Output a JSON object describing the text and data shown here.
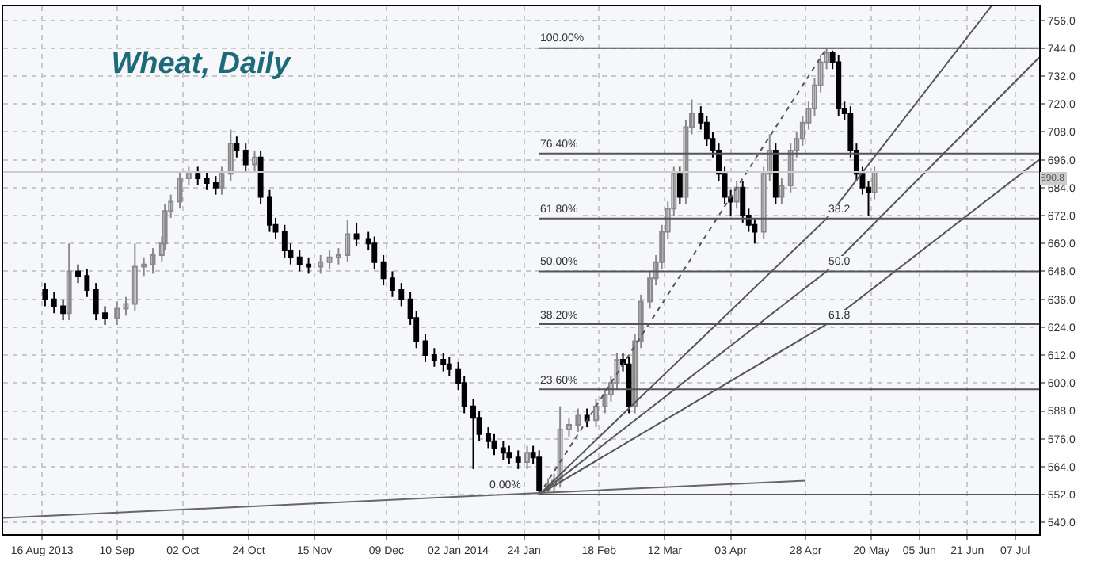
{
  "chart_data": {
    "type": "candlestick",
    "title": "Wheat, Daily",
    "x": [
      "2013-08-17",
      "2013-08-20",
      "2013-08-23",
      "2013-08-25",
      "2013-08-28",
      "2013-08-31",
      "2013-09-03",
      "2013-09-06",
      "2013-09-10",
      "2013-09-13",
      "2013-09-16",
      "2013-09-19",
      "2013-09-22",
      "2013-09-25",
      "2013-09-26",
      "2013-09-28",
      "2013-10-01",
      "2013-10-04",
      "2013-10-07",
      "2013-10-10",
      "2013-10-13",
      "2013-10-15",
      "2013-10-18",
      "2013-10-20",
      "2013-10-23",
      "2013-10-26",
      "2013-10-28",
      "2013-10-31",
      "2013-11-02",
      "2013-11-05",
      "2013-11-07",
      "2013-11-10",
      "2013-11-13",
      "2013-11-17",
      "2013-11-20",
      "2013-11-23",
      "2013-11-26",
      "2013-11-29",
      "2013-12-03",
      "2013-12-05",
      "2013-12-08",
      "2013-12-11",
      "2013-12-14",
      "2013-12-17",
      "2013-12-19",
      "2013-12-22",
      "2013-12-25",
      "2013-12-28",
      "2013-12-30",
      "2014-01-02",
      "2014-01-04",
      "2014-01-07",
      "2014-01-09",
      "2014-01-12",
      "2014-01-14",
      "2014-01-17",
      "2014-01-19",
      "2014-01-22",
      "2014-01-25",
      "2014-01-27",
      "2014-01-29",
      "2014-02-01",
      "2014-02-03",
      "2014-02-05",
      "2014-02-08",
      "2014-02-11",
      "2014-02-14",
      "2014-02-17",
      "2014-02-20",
      "2014-02-22",
      "2014-02-24",
      "2014-02-26",
      "2014-02-28",
      "2014-03-02",
      "2014-03-04",
      "2014-03-07",
      "2014-03-09",
      "2014-03-11",
      "2014-03-13",
      "2014-03-15",
      "2014-03-17",
      "2014-03-19",
      "2014-03-21",
      "2014-03-24",
      "2014-03-26",
      "2014-03-28",
      "2014-03-30",
      "2014-04-01",
      "2014-04-03",
      "2014-04-05",
      "2014-04-07",
      "2014-04-09",
      "2014-04-11",
      "2014-04-14",
      "2014-04-16",
      "2014-04-18",
      "2014-04-20",
      "2014-04-23",
      "2014-04-25",
      "2014-04-27",
      "2014-04-29",
      "2014-05-01",
      "2014-05-03",
      "2014-05-05",
      "2014-05-07",
      "2014-05-09",
      "2014-05-11",
      "2014-05-13",
      "2014-05-15",
      "2014-05-17",
      "2014-05-19",
      "2014-05-21"
    ],
    "ohlc": [
      [
        640,
        643,
        633,
        636
      ],
      [
        636,
        639,
        630,
        633
      ],
      [
        633,
        636,
        627,
        630
      ],
      [
        630,
        660,
        627,
        648
      ],
      [
        648,
        651,
        643,
        646
      ],
      [
        646,
        649,
        637,
        640
      ],
      [
        640,
        643,
        627,
        630
      ],
      [
        630,
        633,
        625,
        628
      ],
      [
        628,
        635,
        625,
        632
      ],
      [
        632,
        637,
        629,
        634
      ],
      [
        634,
        660,
        631,
        650
      ],
      [
        650,
        654,
        646,
        651
      ],
      [
        651,
        658,
        647,
        655
      ],
      [
        655,
        663,
        652,
        660
      ],
      [
        660,
        677,
        657,
        674
      ],
      [
        674,
        681,
        671,
        678
      ],
      [
        678,
        691,
        675,
        688
      ],
      [
        688,
        693,
        685,
        690
      ],
      [
        690,
        693,
        685,
        688
      ],
      [
        688,
        691,
        683,
        686
      ],
      [
        686,
        689,
        681,
        684
      ],
      [
        684,
        693,
        681,
        690
      ],
      [
        690,
        709,
        687,
        703
      ],
      [
        703,
        706,
        697,
        700
      ],
      [
        700,
        703,
        691,
        694
      ],
      [
        694,
        700,
        691,
        697
      ],
      [
        697,
        700,
        677,
        680
      ],
      [
        680,
        683,
        665,
        668
      ],
      [
        668,
        671,
        662,
        665
      ],
      [
        665,
        668,
        654,
        657
      ],
      [
        657,
        660,
        651,
        654
      ],
      [
        654,
        657,
        648,
        651
      ],
      [
        651,
        654,
        647,
        650
      ],
      [
        650,
        655,
        647,
        652
      ],
      [
        652,
        657,
        649,
        654
      ],
      [
        654,
        658,
        651,
        655
      ],
      [
        655,
        670,
        652,
        664
      ],
      [
        664,
        669,
        659,
        662
      ],
      [
        662,
        665,
        657,
        660
      ],
      [
        660,
        663,
        649,
        652
      ],
      [
        652,
        655,
        642,
        645
      ],
      [
        645,
        648,
        637,
        640
      ],
      [
        640,
        643,
        633,
        636
      ],
      [
        636,
        639,
        625,
        628
      ],
      [
        628,
        631,
        615,
        618
      ],
      [
        618,
        621,
        609,
        612
      ],
      [
        612,
        615,
        607,
        610
      ],
      [
        610,
        613,
        605,
        608
      ],
      [
        608,
        611,
        603,
        606
      ],
      [
        606,
        609,
        597,
        600
      ],
      [
        600,
        603,
        587,
        590
      ],
      [
        590,
        593,
        563,
        585
      ],
      [
        585,
        588,
        575,
        578
      ],
      [
        578,
        581,
        572,
        575
      ],
      [
        575,
        578,
        569,
        572
      ],
      [
        572,
        575,
        567,
        570
      ],
      [
        570,
        573,
        565,
        568
      ],
      [
        568,
        571,
        563,
        566
      ],
      [
        566,
        573,
        563,
        570
      ],
      [
        570,
        573,
        565,
        568
      ],
      [
        568,
        571,
        552,
        554
      ],
      [
        554,
        559,
        553,
        556
      ],
      [
        556,
        561,
        553,
        558
      ],
      [
        558,
        590,
        555,
        580
      ],
      [
        580,
        585,
        577,
        582
      ],
      [
        582,
        589,
        579,
        586
      ],
      [
        586,
        589,
        581,
        584
      ],
      [
        584,
        593,
        581,
        590
      ],
      [
        590,
        598,
        587,
        595
      ],
      [
        595,
        603,
        592,
        600
      ],
      [
        600,
        613,
        597,
        610
      ],
      [
        610,
        613,
        605,
        608
      ],
      [
        608,
        611,
        587,
        590
      ],
      [
        590,
        621,
        587,
        618
      ],
      [
        618,
        638,
        615,
        635
      ],
      [
        635,
        648,
        632,
        645
      ],
      [
        645,
        655,
        642,
        652
      ],
      [
        652,
        668,
        649,
        665
      ],
      [
        665,
        678,
        662,
        675
      ],
      [
        675,
        693,
        672,
        690
      ],
      [
        690,
        693,
        677,
        680
      ],
      [
        680,
        713,
        677,
        710
      ],
      [
        710,
        722,
        707,
        716
      ],
      [
        716,
        719,
        709,
        712
      ],
      [
        712,
        715,
        702,
        705
      ],
      [
        705,
        708,
        697,
        700
      ],
      [
        700,
        703,
        687,
        690
      ],
      [
        690,
        693,
        677,
        680
      ],
      [
        680,
        683,
        672,
        678
      ],
      [
        678,
        687,
        675,
        684
      ],
      [
        684,
        687,
        669,
        672
      ],
      [
        672,
        675,
        665,
        668
      ],
      [
        668,
        671,
        660,
        665
      ],
      [
        665,
        693,
        662,
        690
      ],
      [
        690,
        707,
        687,
        700
      ],
      [
        700,
        703,
        677,
        680
      ],
      [
        680,
        688,
        677,
        685
      ],
      [
        685,
        703,
        682,
        700
      ],
      [
        700,
        708,
        697,
        705
      ],
      [
        705,
        715,
        702,
        712
      ],
      [
        712,
        721,
        709,
        718
      ],
      [
        718,
        731,
        715,
        728
      ],
      [
        728,
        741,
        725,
        738
      ],
      [
        738,
        744,
        735,
        742
      ],
      [
        742,
        743,
        735,
        738
      ],
      [
        738,
        741,
        715,
        718
      ],
      [
        718,
        721,
        713,
        716
      ],
      [
        716,
        719,
        697,
        700
      ],
      [
        700,
        703,
        687,
        690
      ],
      [
        690,
        693,
        681,
        684
      ],
      [
        684,
        687,
        672,
        682
      ],
      [
        682,
        693,
        679,
        690.8
      ]
    ],
    "series": [
      {
        "type": "line",
        "x": [
          "2014-01-29",
          "2014-05-05"
        ],
        "values": [
          552,
          744
        ],
        "color": "#555555",
        "line_style": "dotted"
      },
      {
        "type": "line",
        "x": [
          "2014-01-29",
          "2014-05-05",
          "2014-06-29"
        ],
        "values": [
          552,
          670.7,
          762
        ],
        "color": "#555555",
        "line_style": "solid"
      },
      {
        "type": "line",
        "x": [
          "2014-01-29",
          "2014-05-05",
          "2014-07-15"
        ],
        "values": [
          552,
          648,
          740
        ],
        "color": "#555555",
        "line_style": "solid"
      },
      {
        "type": "line",
        "x": [
          "2014-01-29",
          "2014-05-05",
          "2014-07-15"
        ],
        "values": [
          552,
          625.3,
          696
        ],
        "color": "#555555",
        "line_style": "solid"
      },
      {
        "type": "line",
        "x": [
          "2013-08-03",
          "2014-04-28"
        ],
        "values": [
          542,
          558
        ],
        "color": "#666666",
        "line_style": "solid"
      }
    ],
    "ref_lines": [
      {
        "axis": "y",
        "value": 744,
        "color": "#555555"
      },
      {
        "axis": "y",
        "value": 698.7,
        "color": "#555555"
      },
      {
        "axis": "y",
        "value": 670.7,
        "color": "#555555"
      },
      {
        "axis": "y",
        "value": 648,
        "color": "#555555"
      },
      {
        "axis": "y",
        "value": 625.3,
        "color": "#555555"
      },
      {
        "axis": "y",
        "value": 597.3,
        "color": "#555555"
      },
      {
        "axis": "y",
        "value": 552,
        "color": "#555555"
      },
      {
        "axis": "y",
        "value": 690.8,
        "label": "690.8",
        "color": "#cccccc"
      }
    ],
    "annotations": [
      {
        "text": "100.00%",
        "x": "2014-01-29",
        "y": 744
      },
      {
        "text": "76.40%",
        "x": "2014-01-29",
        "y": 698.7
      },
      {
        "text": "61.80%",
        "x": "2014-01-29",
        "y": 670.7
      },
      {
        "text": "50.00%",
        "x": "2014-01-29",
        "y": 648
      },
      {
        "text": "38.20%",
        "x": "2014-01-29",
        "y": 625.3
      },
      {
        "text": "23.60%",
        "x": "2014-01-29",
        "y": 597.3
      },
      {
        "text": "0.00%",
        "x": "2014-01-12",
        "y": 552
      },
      {
        "text": "38.2",
        "x": "2014-05-05",
        "y": 670.7
      },
      {
        "text": "50.0",
        "x": "2014-05-05",
        "y": 648
      },
      {
        "text": "61.8",
        "x": "2014-05-05",
        "y": 625.3
      }
    ],
    "xlim": [
      "2013-08-03",
      "2014-07-15"
    ],
    "xticks": [
      {
        "value": "2013-08-16",
        "label": "16 Aug 2013"
      },
      {
        "value": "2013-09-10",
        "label": "10 Sep"
      },
      {
        "value": "2013-10-02",
        "label": "02 Oct"
      },
      {
        "value": "2013-10-24",
        "label": "24 Oct"
      },
      {
        "value": "2013-11-15",
        "label": "15 Nov"
      },
      {
        "value": "2013-12-09",
        "label": "09 Dec"
      },
      {
        "value": "2014-01-02",
        "label": "02 Jan 2014"
      },
      {
        "value": "2014-01-24",
        "label": "24 Jan"
      },
      {
        "value": "2014-02-18",
        "label": "18 Feb"
      },
      {
        "value": "2014-03-12",
        "label": "12 Mar"
      },
      {
        "value": "2014-04-03",
        "label": "03 Apr"
      },
      {
        "value": "2014-04-28",
        "label": "28 Apr"
      },
      {
        "value": "2014-05-20",
        "label": "20 May"
      },
      {
        "value": "2014-06-05",
        "label": "05 Jun"
      },
      {
        "value": "2014-06-21",
        "label": "21 Jun"
      },
      {
        "value": "2014-07-07",
        "label": "07 Jul"
      }
    ],
    "ylim": [
      535,
      762
    ],
    "yticks": [
      {
        "value": 540,
        "label": "540.0"
      },
      {
        "value": 552,
        "label": "552.0"
      },
      {
        "value": 564,
        "label": "564.0"
      },
      {
        "value": 576,
        "label": "576.0"
      },
      {
        "value": 588,
        "label": "588.0"
      },
      {
        "value": 600,
        "label": "600.0"
      },
      {
        "value": 612,
        "label": "612.0"
      },
      {
        "value": 624,
        "label": "624.0"
      },
      {
        "value": 636,
        "label": "636.0"
      },
      {
        "value": 648,
        "label": "648.0"
      },
      {
        "value": 660,
        "label": "660.0"
      },
      {
        "value": 672,
        "label": "672.0"
      },
      {
        "value": 684,
        "label": "684.0"
      },
      {
        "value": 696,
        "label": "696.0"
      },
      {
        "value": 708,
        "label": "708.0"
      },
      {
        "value": 720,
        "label": "720.0"
      },
      {
        "value": 732,
        "label": "732.0"
      },
      {
        "value": 744,
        "label": "744.0"
      },
      {
        "value": 756,
        "label": "756.0"
      }
    ],
    "grid": true
  }
}
